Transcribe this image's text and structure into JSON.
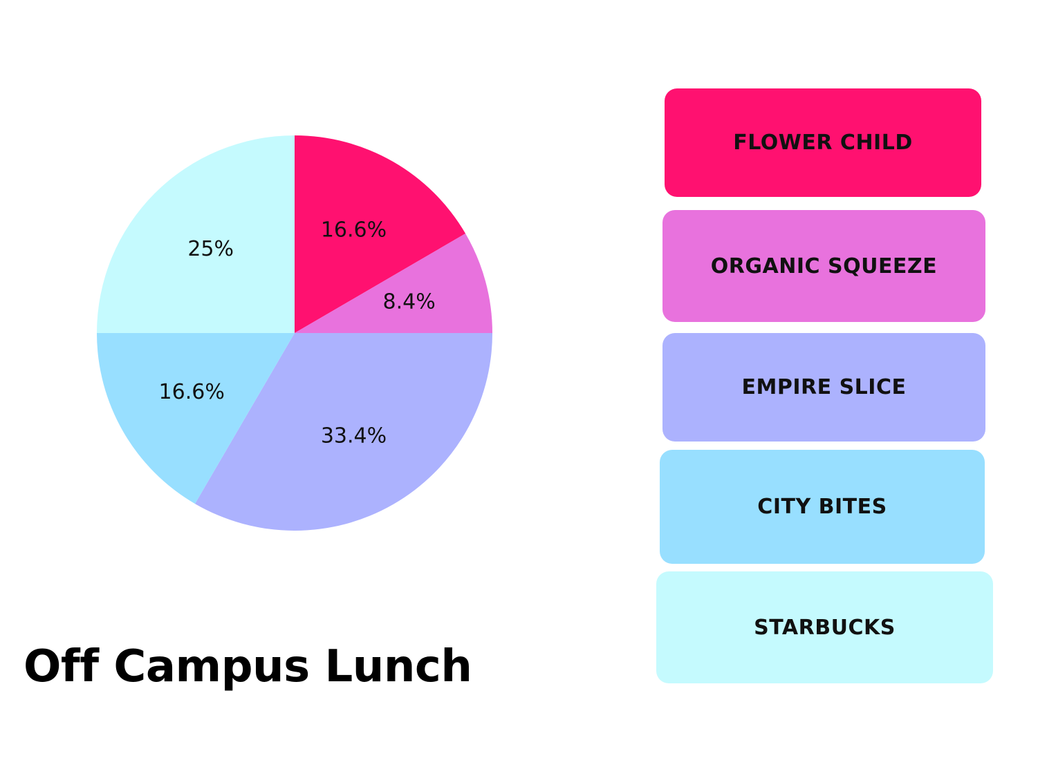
{
  "chart_data": {
    "type": "pie",
    "title": "Off Campus Lunch",
    "slices": [
      {
        "name": "FLOWER CHILD",
        "value": 16.6,
        "label": "16.6%",
        "color": "#ff1170"
      },
      {
        "name": "ORGANIC SQUEEZE",
        "value": 8.4,
        "label": "8.4%",
        "color": "#e872dd"
      },
      {
        "name": "EMPIRE SLICE",
        "value": 33.4,
        "label": "33.4%",
        "color": "#acb2fe"
      },
      {
        "name": "CITY BITES",
        "value": 16.6,
        "label": "16.6%",
        "color": "#98dfff"
      },
      {
        "name": "STARBUCKS",
        "value": 25,
        "label": "25%",
        "color": "#c5fafe"
      }
    ],
    "start": "12 o'clock",
    "direction": "clockwise",
    "legend_position": "right"
  }
}
